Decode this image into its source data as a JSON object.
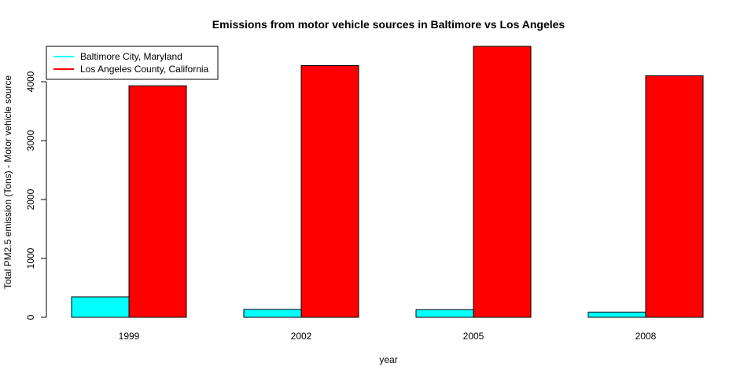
{
  "chart_data": {
    "type": "bar",
    "title": "Emissions from motor vehicle sources in Baltimore vs Los Angeles",
    "xlabel": "year",
    "ylabel": "Total PM2.5 emission (Tons) - Motor vehicle source",
    "categories": [
      "1999",
      "2002",
      "2005",
      "2008"
    ],
    "series": [
      {
        "name": "Baltimore City, Maryland",
        "color": "#00ffff",
        "values": [
          347,
          134,
          130,
          89
        ]
      },
      {
        "name": "Los Angeles County, California",
        "color": "#ff0000",
        "values": [
          3931,
          4274,
          4601,
          4101
        ]
      }
    ],
    "ylim": [
      0,
      4601
    ],
    "yticks": [
      0,
      1000,
      2000,
      3000,
      4000
    ],
    "grid": false,
    "legend_position": "top-left"
  }
}
